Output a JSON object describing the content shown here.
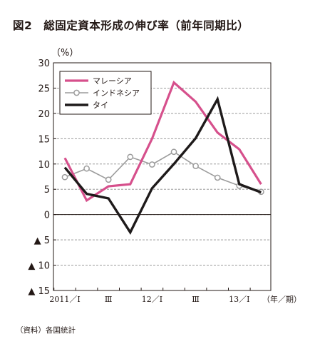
{
  "title": "図2　総固定資本形成の伸び率（前年同期比）",
  "source": "（資料）各国統計",
  "colors": {
    "malaysia": "#d6508c",
    "indonesia": "#9c9c9c",
    "thailand": "#1e1a1a",
    "grid": "#8c8c8c",
    "axis": "#231815"
  },
  "chart_data": {
    "type": "line",
    "y_unit": "（%）",
    "x_unit": "（年／期）",
    "ylim": [
      -15,
      30
    ],
    "yticks": [
      {
        "value": 30,
        "label": "30"
      },
      {
        "value": 25,
        "label": "25"
      },
      {
        "value": 20,
        "label": "20"
      },
      {
        "value": 15,
        "label": "15"
      },
      {
        "value": 10,
        "label": "10"
      },
      {
        "value": 5,
        "label": "5"
      },
      {
        "value": 0,
        "label": "0"
      },
      {
        "value": -5,
        "label": "▲ 5"
      },
      {
        "value": -10,
        "label": "▲ 10"
      },
      {
        "value": -15,
        "label": "▲ 15"
      }
    ],
    "grid": true,
    "legend_position": "top-left",
    "quarters": [
      "2011/I",
      "2011/II",
      "2011/III",
      "2011/IV",
      "12/I",
      "12/II",
      "12/III",
      "12/IV",
      "13/I",
      "13/II"
    ],
    "xtick_labels": [
      {
        "index": 0,
        "label": "2011／Ⅰ"
      },
      {
        "index": 2,
        "label": "Ⅲ"
      },
      {
        "index": 4,
        "label": "12／Ⅰ"
      },
      {
        "index": 6,
        "label": "Ⅲ"
      },
      {
        "index": 8,
        "label": "13／Ⅰ"
      }
    ],
    "series": [
      {
        "name": "マレーシア",
        "key": "malaysia",
        "values": [
          11.2,
          2.8,
          5.6,
          6.0,
          15.0,
          26.1,
          22.3,
          16.2,
          12.9,
          6.0
        ]
      },
      {
        "name": "インドネシア",
        "key": "indonesia",
        "values": [
          7.4,
          9.1,
          6.9,
          11.4,
          9.9,
          12.4,
          9.6,
          7.3,
          5.7,
          4.5
        ]
      },
      {
        "name": "タイ",
        "key": "thailand",
        "values": [
          9.3,
          4.1,
          3.2,
          -3.5,
          5.2,
          10.0,
          15.1,
          22.8,
          6.0,
          4.4
        ]
      }
    ]
  }
}
